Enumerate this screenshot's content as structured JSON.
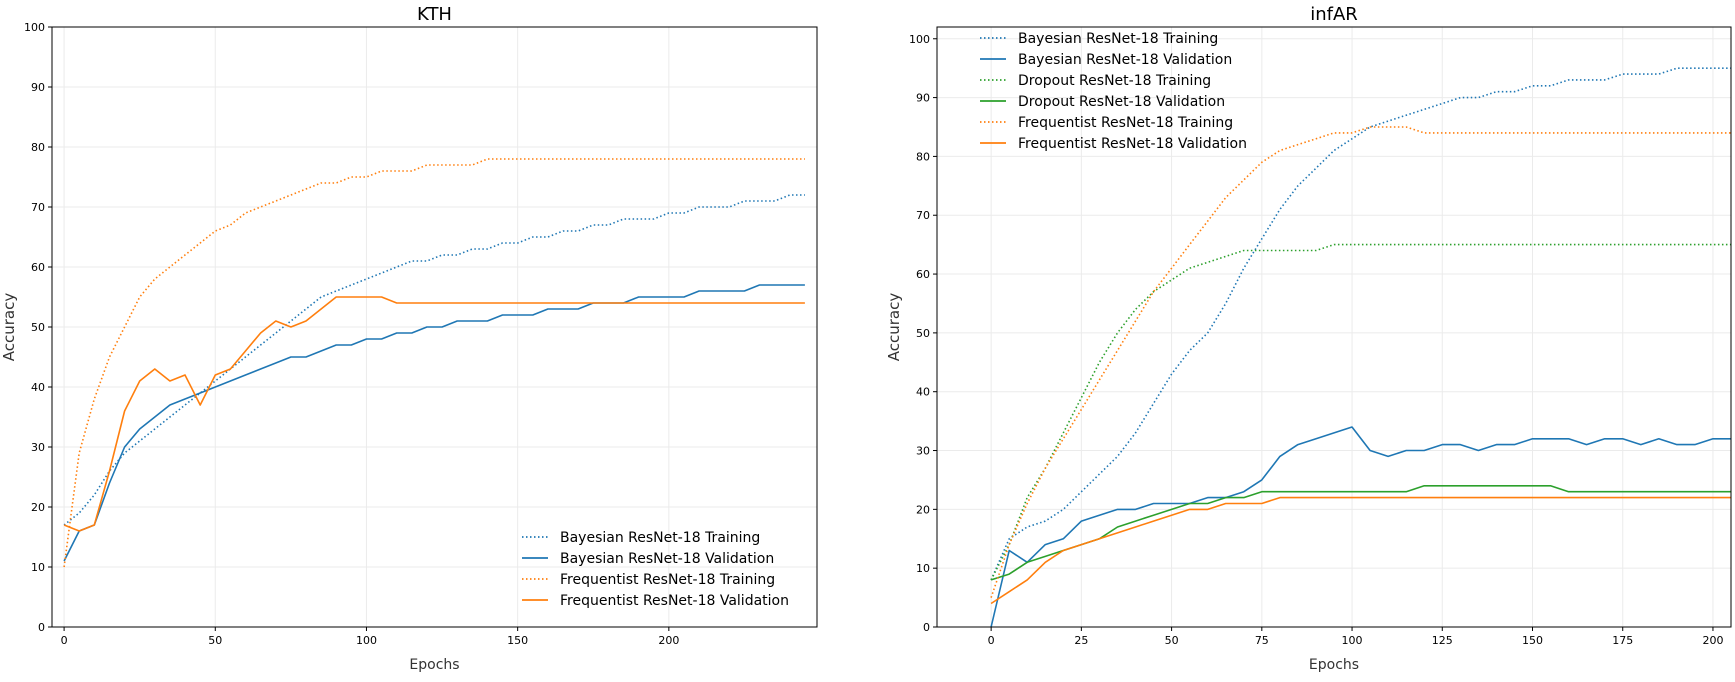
{
  "chart_data": [
    {
      "type": "line",
      "title": "KTH",
      "xlabel": "Epochs",
      "ylabel": "Accuracy",
      "xlim": [
        -4,
        249
      ],
      "ylim": [
        0,
        100
      ],
      "xticks": [
        0,
        50,
        100,
        150,
        200
      ],
      "yticks": [
        0,
        10,
        20,
        30,
        40,
        50,
        60,
        70,
        80,
        90,
        100
      ],
      "grid": true,
      "legend_position": "lower right",
      "series": [
        {
          "name": "Bayesian ResNet-18 Training",
          "color": "#1f77b4",
          "style": "dotted",
          "x": [
            0,
            5,
            10,
            15,
            20,
            25,
            30,
            35,
            40,
            45,
            50,
            55,
            60,
            65,
            70,
            75,
            80,
            85,
            90,
            95,
            100,
            105,
            110,
            115,
            120,
            125,
            130,
            135,
            140,
            145,
            150,
            155,
            160,
            165,
            170,
            175,
            180,
            185,
            190,
            195,
            200,
            205,
            210,
            215,
            220,
            225,
            230,
            235,
            240,
            245
          ],
          "y": [
            17,
            19,
            22,
            26,
            29,
            31,
            33,
            35,
            37,
            39,
            41,
            43,
            45,
            47,
            49,
            51,
            53,
            55,
            56,
            57,
            58,
            59,
            60,
            61,
            61,
            62,
            62,
            63,
            63,
            64,
            64,
            65,
            65,
            66,
            66,
            67,
            67,
            68,
            68,
            68,
            69,
            69,
            70,
            70,
            70,
            71,
            71,
            71,
            72,
            72
          ]
        },
        {
          "name": "Bayesian ResNet-18 Validation",
          "color": "#1f77b4",
          "style": "solid",
          "x": [
            0,
            5,
            10,
            15,
            20,
            25,
            30,
            35,
            40,
            45,
            50,
            55,
            60,
            65,
            70,
            75,
            80,
            85,
            90,
            95,
            100,
            105,
            110,
            115,
            120,
            125,
            130,
            135,
            140,
            145,
            150,
            155,
            160,
            165,
            170,
            175,
            180,
            185,
            190,
            195,
            200,
            205,
            210,
            215,
            220,
            225,
            230,
            235,
            240,
            245
          ],
          "y": [
            11,
            16,
            17,
            24,
            30,
            33,
            35,
            37,
            38,
            39,
            40,
            41,
            42,
            43,
            44,
            45,
            45,
            46,
            47,
            47,
            48,
            48,
            49,
            49,
            50,
            50,
            51,
            51,
            51,
            52,
            52,
            52,
            53,
            53,
            53,
            54,
            54,
            54,
            55,
            55,
            55,
            55,
            56,
            56,
            56,
            56,
            57,
            57,
            57,
            57
          ]
        },
        {
          "name": "Frequentist ResNet-18 Training",
          "color": "#ff7f0e",
          "style": "dotted",
          "x": [
            0,
            5,
            10,
            15,
            20,
            25,
            30,
            35,
            40,
            45,
            50,
            55,
            60,
            65,
            70,
            75,
            80,
            85,
            90,
            95,
            100,
            105,
            110,
            115,
            120,
            125,
            130,
            135,
            140,
            145,
            150,
            155,
            160,
            165,
            170,
            175,
            180,
            185,
            190,
            195,
            200,
            205,
            210,
            215,
            220,
            225,
            230,
            235,
            240,
            245
          ],
          "y": [
            10,
            29,
            38,
            45,
            50,
            55,
            58,
            60,
            62,
            64,
            66,
            67,
            69,
            70,
            71,
            72,
            73,
            74,
            74,
            75,
            75,
            76,
            76,
            76,
            77,
            77,
            77,
            77,
            78,
            78,
            78,
            78,
            78,
            78,
            78,
            78,
            78,
            78,
            78,
            78,
            78,
            78,
            78,
            78,
            78,
            78,
            78,
            78,
            78,
            78
          ]
        },
        {
          "name": "Frequentist ResNet-18 Validation",
          "color": "#ff7f0e",
          "style": "solid",
          "x": [
            0,
            5,
            10,
            15,
            20,
            25,
            30,
            35,
            40,
            45,
            50,
            55,
            60,
            65,
            70,
            75,
            80,
            85,
            90,
            95,
            100,
            105,
            110,
            115,
            120,
            125,
            130,
            135,
            140,
            145,
            150,
            155,
            160,
            165,
            170,
            175,
            180,
            185,
            190,
            195,
            200,
            205,
            210,
            215,
            220,
            225,
            230,
            235,
            240,
            245
          ],
          "y": [
            17,
            16,
            17,
            26,
            36,
            41,
            43,
            41,
            42,
            37,
            42,
            43,
            46,
            49,
            51,
            50,
            51,
            53,
            55,
            55,
            55,
            55,
            54,
            54,
            54,
            54,
            54,
            54,
            54,
            54,
            54,
            54,
            54,
            54,
            54,
            54,
            54,
            54,
            54,
            54,
            54,
            54,
            54,
            54,
            54,
            54,
            54,
            54,
            54,
            54
          ]
        }
      ]
    },
    {
      "type": "line",
      "title": "infAR",
      "xlabel": "Epochs",
      "ylabel": "Accuracy",
      "xlim": [
        -15,
        205
      ],
      "ylim": [
        0,
        102
      ],
      "xticks": [
        0,
        25,
        50,
        75,
        100,
        125,
        150,
        175,
        200
      ],
      "yticks": [
        0,
        10,
        20,
        30,
        40,
        50,
        60,
        70,
        80,
        90,
        100
      ],
      "grid": true,
      "legend_position": "upper left",
      "series": [
        {
          "name": "Bayesian ResNet-18 Training",
          "color": "#1f77b4",
          "style": "dotted",
          "x": [
            0,
            5,
            10,
            15,
            20,
            25,
            30,
            35,
            40,
            45,
            50,
            55,
            60,
            65,
            70,
            75,
            80,
            85,
            90,
            95,
            100,
            105,
            110,
            115,
            120,
            125,
            130,
            135,
            140,
            145,
            150,
            155,
            160,
            165,
            170,
            175,
            180,
            185,
            190,
            195,
            200,
            205
          ],
          "y": [
            8,
            15,
            17,
            18,
            20,
            23,
            26,
            29,
            33,
            38,
            43,
            47,
            50,
            55,
            61,
            66,
            71,
            75,
            78,
            81,
            83,
            85,
            86,
            87,
            88,
            89,
            90,
            90,
            91,
            91,
            92,
            92,
            93,
            93,
            93,
            94,
            94,
            94,
            95,
            95,
            95,
            95
          ]
        },
        {
          "name": "Bayesian ResNet-18 Validation",
          "color": "#1f77b4",
          "style": "solid",
          "x": [
            0,
            5,
            10,
            15,
            20,
            25,
            30,
            35,
            40,
            45,
            50,
            55,
            60,
            65,
            70,
            75,
            80,
            85,
            90,
            95,
            100,
            105,
            110,
            115,
            120,
            125,
            130,
            135,
            140,
            145,
            150,
            155,
            160,
            165,
            170,
            175,
            180,
            185,
            190,
            195,
            200,
            205
          ],
          "y": [
            0,
            13,
            11,
            14,
            15,
            18,
            19,
            20,
            20,
            21,
            21,
            21,
            22,
            22,
            23,
            25,
            29,
            31,
            32,
            33,
            34,
            30,
            29,
            30,
            30,
            31,
            31,
            30,
            31,
            31,
            32,
            32,
            32,
            31,
            32,
            32,
            31,
            32,
            31,
            31,
            32,
            32
          ]
        },
        {
          "name": "Dropout ResNet-18 Training",
          "color": "#2ca02c",
          "style": "dotted",
          "x": [
            0,
            5,
            10,
            15,
            20,
            25,
            30,
            35,
            40,
            45,
            50,
            55,
            60,
            65,
            70,
            75,
            80,
            85,
            90,
            95,
            100,
            105,
            110,
            115,
            120,
            125,
            130,
            135,
            140,
            145,
            150,
            155,
            160,
            165,
            170,
            175,
            180,
            185,
            190,
            195,
            200,
            205
          ],
          "y": [
            8,
            14,
            22,
            27,
            33,
            39,
            45,
            50,
            54,
            57,
            59,
            61,
            62,
            63,
            64,
            64,
            64,
            64,
            64,
            65,
            65,
            65,
            65,
            65,
            65,
            65,
            65,
            65,
            65,
            65,
            65,
            65,
            65,
            65,
            65,
            65,
            65,
            65,
            65,
            65,
            65,
            65
          ]
        },
        {
          "name": "Dropout ResNet-18 Validation",
          "color": "#2ca02c",
          "style": "solid",
          "x": [
            0,
            5,
            10,
            15,
            20,
            25,
            30,
            35,
            40,
            45,
            50,
            55,
            60,
            65,
            70,
            75,
            80,
            85,
            90,
            95,
            100,
            105,
            110,
            115,
            120,
            125,
            130,
            135,
            140,
            145,
            150,
            155,
            160,
            165,
            170,
            175,
            180,
            185,
            190,
            195,
            200,
            205
          ],
          "y": [
            8,
            9,
            11,
            12,
            13,
            14,
            15,
            17,
            18,
            19,
            20,
            21,
            21,
            22,
            22,
            23,
            23,
            23,
            23,
            23,
            23,
            23,
            23,
            23,
            24,
            24,
            24,
            24,
            24,
            24,
            24,
            24,
            23,
            23,
            23,
            23,
            23,
            23,
            23,
            23,
            23,
            23
          ]
        },
        {
          "name": "Frequentist ResNet-18 Training",
          "color": "#ff7f0e",
          "style": "dotted",
          "x": [
            0,
            5,
            10,
            15,
            20,
            25,
            30,
            35,
            40,
            45,
            50,
            55,
            60,
            65,
            70,
            75,
            80,
            85,
            90,
            95,
            100,
            105,
            110,
            115,
            120,
            125,
            130,
            135,
            140,
            145,
            150,
            155,
            160,
            165,
            170,
            175,
            180,
            185,
            190,
            195,
            200,
            205
          ],
          "y": [
            5,
            14,
            21,
            27,
            32,
            37,
            42,
            47,
            52,
            57,
            61,
            65,
            69,
            73,
            76,
            79,
            81,
            82,
            83,
            84,
            84,
            85,
            85,
            85,
            84,
            84,
            84,
            84,
            84,
            84,
            84,
            84,
            84,
            84,
            84,
            84,
            84,
            84,
            84,
            84,
            84,
            84
          ]
        },
        {
          "name": "Frequentist ResNet-18 Validation",
          "color": "#ff7f0e",
          "style": "solid",
          "x": [
            0,
            5,
            10,
            15,
            20,
            25,
            30,
            35,
            40,
            45,
            50,
            55,
            60,
            65,
            70,
            75,
            80,
            85,
            90,
            95,
            100,
            105,
            110,
            115,
            120,
            125,
            130,
            135,
            140,
            145,
            150,
            155,
            160,
            165,
            170,
            175,
            180,
            185,
            190,
            195,
            200,
            205
          ],
          "y": [
            4,
            6,
            8,
            11,
            13,
            14,
            15,
            16,
            17,
            18,
            19,
            20,
            20,
            21,
            21,
            21,
            22,
            22,
            22,
            22,
            22,
            22,
            22,
            22,
            22,
            22,
            22,
            22,
            22,
            22,
            22,
            22,
            22,
            22,
            22,
            22,
            22,
            22,
            22,
            22,
            22,
            22
          ]
        }
      ]
    }
  ]
}
